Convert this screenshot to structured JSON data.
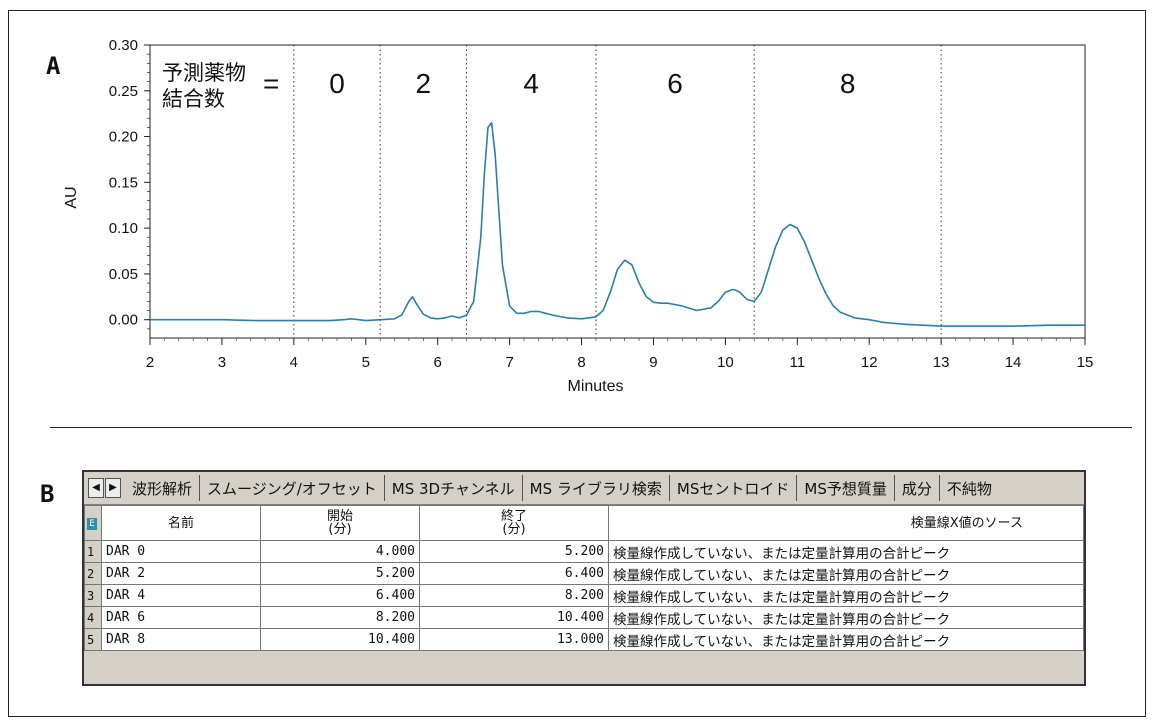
{
  "panel_a_letter": "A",
  "panel_b_letter": "B",
  "chart_data": {
    "type": "line",
    "xlabel": "Minutes",
    "ylabel": "AU",
    "xlim": [
      2,
      15
    ],
    "ylim": [
      -0.02,
      0.3
    ],
    "xticks": [
      2,
      3,
      4,
      5,
      6,
      7,
      8,
      9,
      10,
      11,
      12,
      13,
      14,
      15
    ],
    "yticks": [
      "0.00",
      "0.05",
      "0.10",
      "0.15",
      "0.20",
      "0.25",
      "0.30"
    ],
    "annotation_prefix_line1": "予測薬物",
    "annotation_prefix_line2": "結合数",
    "annotation_equals": "=",
    "region_boundaries": [
      4.0,
      5.2,
      6.4,
      8.2,
      10.4,
      13.0
    ],
    "region_labels": [
      {
        "label": "0",
        "x": 4.6
      },
      {
        "label": "2",
        "x": 5.8
      },
      {
        "label": "4",
        "x": 7.3
      },
      {
        "label": "6",
        "x": 9.3
      },
      {
        "label": "8",
        "x": 11.7
      }
    ],
    "line_color": "#2a7fa8",
    "series": [
      {
        "x": [
          2.0,
          2.5,
          3.0,
          3.5,
          4.0,
          4.5,
          4.7,
          4.8,
          4.9,
          5.0,
          5.2,
          5.4,
          5.5,
          5.6,
          5.65,
          5.7,
          5.8,
          5.9,
          6.0,
          6.1,
          6.2,
          6.3,
          6.4,
          6.5,
          6.6,
          6.65,
          6.7,
          6.75,
          6.8,
          6.85,
          6.9,
          7.0,
          7.1,
          7.2,
          7.3,
          7.4,
          7.5,
          7.6,
          7.8,
          8.0,
          8.2,
          8.3,
          8.4,
          8.5,
          8.6,
          8.7,
          8.8,
          8.9,
          9.0,
          9.1,
          9.2,
          9.4,
          9.6,
          9.8,
          9.9,
          10.0,
          10.1,
          10.15,
          10.2,
          10.3,
          10.4,
          10.5,
          10.6,
          10.7,
          10.8,
          10.9,
          11.0,
          11.1,
          11.2,
          11.3,
          11.4,
          11.5,
          11.6,
          11.8,
          12.0,
          12.2,
          12.5,
          13.0,
          13.5,
          14.0,
          14.5,
          15.0
        ],
        "values": [
          0.0,
          0.0,
          0.0,
          -0.001,
          -0.001,
          -0.001,
          0.0,
          0.001,
          0.0,
          -0.001,
          0.0,
          0.001,
          0.005,
          0.02,
          0.025,
          0.018,
          0.006,
          0.002,
          0.001,
          0.002,
          0.004,
          0.002,
          0.005,
          0.02,
          0.09,
          0.16,
          0.21,
          0.215,
          0.18,
          0.12,
          0.06,
          0.015,
          0.007,
          0.007,
          0.009,
          0.009,
          0.007,
          0.005,
          0.002,
          0.001,
          0.003,
          0.01,
          0.03,
          0.055,
          0.065,
          0.06,
          0.04,
          0.025,
          0.019,
          0.018,
          0.018,
          0.015,
          0.01,
          0.013,
          0.02,
          0.03,
          0.033,
          0.032,
          0.03,
          0.022,
          0.02,
          0.03,
          0.055,
          0.08,
          0.098,
          0.104,
          0.1,
          0.085,
          0.065,
          0.045,
          0.028,
          0.015,
          0.008,
          0.002,
          0.0,
          -0.003,
          -0.005,
          -0.007,
          -0.007,
          -0.007,
          -0.006,
          -0.006
        ]
      }
    ]
  },
  "tabs": {
    "items": [
      "波形解析",
      "スムージング/オフセット",
      "MS 3Dチャンネル",
      "MS ライブラリ検索",
      "MSセントロイド",
      "MS予想質量",
      "成分",
      "不純物"
    ]
  },
  "table": {
    "corner_icon": "E",
    "headers": {
      "name": "名前",
      "start_line1": "開始",
      "start_line2": "(分)",
      "end_line1": "終了",
      "end_line2": "(分)",
      "source": "検量線X値のソース"
    },
    "rows": [
      {
        "n": "1",
        "name": "DAR 0",
        "start": "4.000",
        "end": "5.200",
        "source": "検量線作成していない、または定量計算用の合計ピーク"
      },
      {
        "n": "2",
        "name": "DAR 2",
        "start": "5.200",
        "end": "6.400",
        "source": "検量線作成していない、または定量計算用の合計ピーク"
      },
      {
        "n": "3",
        "name": "DAR 4",
        "start": "6.400",
        "end": "8.200",
        "source": "検量線作成していない、または定量計算用の合計ピーク"
      },
      {
        "n": "4",
        "name": "DAR 6",
        "start": "8.200",
        "end": "10.400",
        "source": "検量線作成していない、または定量計算用の合計ピーク"
      },
      {
        "n": "5",
        "name": "DAR 8",
        "start": "10.400",
        "end": "13.000",
        "source": "検量線作成していない、または定量計算用の合計ピーク"
      }
    ]
  }
}
